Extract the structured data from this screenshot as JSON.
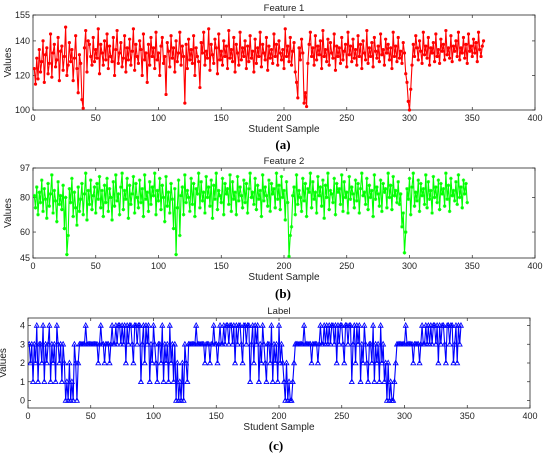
{
  "panel_labels": [
    "(a)",
    "(b)",
    "(c)"
  ],
  "colors": {
    "feature1": "#ff0000",
    "feature2": "#00ff00",
    "label": "#0000ff"
  },
  "chart_data": [
    {
      "type": "line",
      "title": "Feature 1",
      "xlabel": "Student Sample",
      "ylabel": "Values",
      "xlim": [
        0,
        400
      ],
      "ylim": [
        100,
        155
      ],
      "xticks": [
        0,
        50,
        100,
        150,
        200,
        250,
        300,
        350,
        400
      ],
      "yticks": [
        100,
        120,
        140,
        155
      ],
      "marker": "circle",
      "color": "#ff0000",
      "series": [
        {
          "x_start": 1,
          "x_step": 1,
          "values": [
            124,
            115,
            130,
            118,
            135,
            122,
            128,
            140,
            116,
            132,
            136,
            121,
            127,
            144,
            119,
            133,
            138,
            125,
            129,
            142,
            117,
            134,
            137,
            123,
            131,
            148,
            120,
            126,
            139,
            128,
            135,
            117,
            130,
            143,
            124,
            110,
            132,
            127,
            106,
            101,
            136,
            146,
            122,
            140,
            138,
            131,
            126,
            142,
            128,
            135,
            130,
            147,
            121,
            138,
            133,
            126,
            140,
            129,
            144,
            124,
            137,
            131,
            128,
            142,
            120,
            135,
            146,
            127,
            133,
            139,
            125,
            130,
            143,
            122,
            136,
            129,
            141,
            126,
            134,
            147,
            123,
            138,
            131,
            127,
            140,
            135,
            120,
            144,
            129,
            133,
            116,
            138,
            126,
            142,
            131,
            136,
            124,
            145,
            129,
            133,
            120,
            137,
            142,
            127,
            131,
            109,
            139,
            134,
            125,
            143,
            130,
            136,
            122,
            140,
            128,
            133,
            145,
            126,
            137,
            131,
            104,
            138,
            124,
            141,
            129,
            135,
            127,
            143,
            120,
            136,
            131,
            128,
            113,
            139,
            133,
            145,
            126,
            134,
            130,
            147,
            123,
            138,
            132,
            127,
            141,
            136,
            121,
            144,
            129,
            134,
            126,
            140,
            131,
            137,
            124,
            146,
            130,
            135,
            128,
            142,
            122,
            138,
            133,
            126,
            145,
            129,
            136,
            131,
            140,
            124,
            137,
            128,
            143,
            130,
            134,
            122,
            141,
            127,
            136,
            131,
            145,
            125,
            138,
            133,
            129,
            142,
            123,
            137,
            130,
            135,
            127,
            144,
            131,
            138,
            126,
            140,
            133,
            129,
            135,
            124,
            147,
            131,
            137,
            128,
            142,
            126,
            134,
            139,
            122,
            116,
            107,
            136,
            129,
            141,
            133,
            104,
            110,
            102,
            127,
            138,
            145,
            131,
            136,
            126,
            143,
            129,
            137,
            132,
            140,
            124,
            146,
            131,
            135,
            128,
            141,
            126,
            139,
            133,
            130,
            144,
            123,
            137,
            131,
            136,
            127,
            142,
            129,
            134,
            138,
            125,
            145,
            132,
            137,
            128,
            141,
            130,
            135,
            126,
            143,
            131,
            138,
            124,
            140,
            133,
            129,
            146,
            127,
            136,
            131,
            139,
            125,
            142,
            134,
            130,
            137,
            128,
            144,
            132,
            135,
            126,
            141,
            133,
            138,
            129,
            136,
            124,
            145,
            131,
            137,
            128,
            142,
            130,
            134,
            127,
            139,
            133,
            121,
            116,
            105,
            100,
            112,
            126,
            138,
            131,
            143,
            136,
            129,
            140,
            134,
            127,
            145,
            132,
            137,
            130,
            142,
            126,
            136,
            133,
            139,
            128,
            144,
            131,
            135,
            127,
            141,
            134,
            138,
            129,
            146,
            132,
            136,
            130,
            143,
            128,
            137,
            134,
            140,
            131,
            145,
            129,
            136,
            133,
            142,
            130,
            138,
            127,
            144,
            134,
            137,
            131,
            141,
            133,
            139,
            128,
            145,
            135,
            131,
            137,
            140
          ]
        }
      ]
    },
    {
      "type": "line",
      "title": "Feature 2",
      "xlabel": "Student Sample",
      "ylabel": "Values",
      "xlim": [
        0,
        400
      ],
      "ylim": [
        45,
        97
      ],
      "xticks": [
        0,
        50,
        100,
        150,
        200,
        250,
        300,
        350,
        400
      ],
      "yticks": [
        45,
        60,
        80,
        97
      ],
      "marker": "star",
      "color": "#00ff00",
      "series": [
        {
          "x_start": 1,
          "x_step": 1,
          "values": [
            81,
            74,
            86,
            70,
            83,
            77,
            90,
            72,
            85,
            79,
            68,
            88,
            75,
            82,
            93,
            71,
            84,
            78,
            66,
            89,
            76,
            81,
            73,
            87,
            62,
            80,
            47,
            58,
            85,
            77,
            91,
            69,
            83,
            74,
            64,
            86,
            72,
            79,
            88,
            70,
            82,
            94,
            67,
            84,
            76,
            90,
            73,
            81,
            86,
            71,
            88,
            79,
            92,
            74,
            84,
            69,
            87,
            77,
            91,
            72,
            85,
            80,
            67,
            89,
            75,
            93,
            78,
            82,
            70,
            86,
            94,
            73,
            84,
            79,
            91,
            68,
            87,
            76,
            82,
            92,
            71,
            88,
            80,
            74,
            90,
            77,
            85,
            69,
            93,
            79,
            83,
            72,
            89,
            76,
            86,
            81,
            94,
            70,
            84,
            78,
            91,
            73,
            87,
            80,
            66,
            92,
            75,
            83,
            71,
            88,
            79,
            62,
            85,
            47,
            74,
            90,
            58,
            81,
            86,
            70,
            93,
            77,
            84,
            80,
            72,
            91,
            76,
            88,
            69,
            85,
            82,
            94,
            74,
            89,
            78,
            83,
            71,
            92,
            80,
            86,
            75,
            90,
            68,
            87,
            79,
            94,
            73,
            84,
            81,
            77,
            91,
            70,
            88,
            82,
            85,
            76,
            93,
            72,
            89,
            79,
            83,
            70,
            92,
            78,
            86,
            81,
            74,
            90,
            77,
            88,
            71,
            85,
            94,
            80,
            83,
            76,
            91,
            73,
            87,
            79,
            84,
            69,
            93,
            78,
            86,
            81,
            75,
            90,
            72,
            88,
            82,
            85,
            74,
            94,
            79,
            87,
            73,
            92,
            80,
            84,
            67,
            89,
            77,
            46,
            58,
            63,
            81,
            86,
            70,
            93,
            76,
            84,
            80,
            72,
            91,
            78,
            88,
            69,
            85,
            83,
            94,
            74,
            89,
            79,
            83,
            71,
            92,
            81,
            86,
            75,
            90,
            68,
            87,
            80,
            94,
            73,
            84,
            82,
            77,
            91,
            70,
            88,
            83,
            85,
            76,
            93,
            72,
            89,
            80,
            83,
            71,
            92,
            79,
            86,
            82,
            74,
            90,
            78,
            88,
            71,
            85,
            94,
            81,
            83,
            76,
            91,
            73,
            87,
            80,
            84,
            69,
            93,
            79,
            86,
            82,
            75,
            90,
            72,
            88,
            83,
            85,
            74,
            94,
            80,
            87,
            73,
            92,
            81,
            84,
            77,
            89,
            76,
            82,
            63,
            71,
            48,
            60,
            85,
            79,
            91,
            70,
            86,
            94,
            75,
            83,
            78,
            90,
            72,
            88,
            81,
            85,
            76,
            93,
            74,
            89,
            79,
            84,
            71,
            92,
            80,
            86,
            77,
            90,
            73,
            88,
            82,
            85,
            75,
            94,
            79,
            87,
            72,
            91,
            81,
            84,
            78,
            89,
            76,
            93,
            80,
            86,
            74,
            90,
            82,
            88,
            77
          ]
        }
      ]
    },
    {
      "type": "line",
      "title": "Label",
      "xlabel": "Student Sample",
      "ylabel": "Values",
      "xlim": [
        0,
        400
      ],
      "ylim": [
        -0.4,
        4.4
      ],
      "xticks": [
        0,
        50,
        100,
        150,
        200,
        250,
        300,
        350,
        400
      ],
      "yticks": [
        0,
        1,
        2,
        3,
        4
      ],
      "marker": "triangle",
      "color": "#0000ff",
      "series": [
        {
          "x_start": 1,
          "x_step": 1,
          "values": [
            3,
            2,
            3,
            1,
            3,
            2,
            4,
            1,
            3,
            3,
            2,
            4,
            1,
            3,
            2,
            3,
            4,
            1,
            3,
            2,
            3,
            1,
            4,
            3,
            2,
            3,
            1,
            3,
            2,
            0,
            1,
            0,
            2,
            0,
            1,
            0,
            3,
            2,
            0,
            2,
            3,
            3,
            3,
            3,
            3,
            4,
            3,
            3,
            3,
            3,
            3,
            3,
            3,
            3,
            3,
            2,
            3,
            4,
            3,
            3,
            2,
            3,
            3,
            3,
            2,
            3,
            4,
            3,
            3,
            4,
            3,
            4,
            4,
            3,
            4,
            3,
            4,
            2,
            4,
            3,
            4,
            4,
            3,
            2,
            4,
            4,
            3,
            4,
            4,
            1,
            3,
            4,
            2,
            4,
            3,
            4,
            1,
            3,
            2,
            4,
            3,
            2,
            1,
            3,
            3,
            2,
            4,
            1,
            3,
            2,
            3,
            1,
            4,
            2,
            3,
            1,
            3,
            0,
            2,
            0,
            1,
            0,
            2,
            0,
            3,
            2,
            1,
            3,
            3,
            3,
            3,
            3,
            3,
            4,
            3,
            3,
            3,
            3,
            3,
            3,
            2,
            3,
            3,
            3,
            2,
            3,
            3,
            4,
            3,
            3,
            2,
            3,
            4,
            3,
            3,
            4,
            3,
            4,
            4,
            3,
            4,
            4,
            3,
            4,
            2,
            4,
            3,
            4,
            4,
            3,
            2,
            4,
            4,
            3,
            4,
            4,
            1,
            3,
            4,
            2,
            4,
            3,
            4,
            1,
            3,
            2,
            4,
            3,
            2,
            1,
            3,
            3,
            2,
            4,
            1,
            3,
            2,
            3,
            1,
            4,
            2,
            3,
            2,
            1,
            0,
            2,
            0,
            1,
            0,
            0,
            1,
            2,
            3,
            3,
            3,
            3,
            3,
            3,
            3,
            4,
            3,
            3,
            3,
            3,
            3,
            2,
            3,
            3,
            3,
            3,
            2,
            3,
            4,
            3,
            3,
            4,
            3,
            4,
            3,
            4,
            3,
            4,
            4,
            3,
            4,
            2,
            4,
            3,
            4,
            4,
            3,
            2,
            4,
            4,
            3,
            4,
            4,
            1,
            3,
            4,
            2,
            4,
            3,
            4,
            1,
            3,
            2,
            4,
            3,
            2,
            1,
            3,
            3,
            2,
            4,
            1,
            3,
            2,
            3,
            1,
            4,
            2,
            3,
            1,
            2,
            0,
            2,
            0,
            1,
            0,
            0,
            1,
            2,
            3,
            3,
            3,
            3,
            3,
            3,
            3,
            4,
            3,
            3,
            3,
            3,
            3,
            2,
            3,
            3,
            3,
            3,
            2,
            3,
            4,
            3,
            3,
            4,
            3,
            4,
            3,
            4,
            3,
            4,
            4,
            3,
            4,
            2,
            4,
            3,
            4,
            4,
            3,
            2,
            4,
            4,
            3,
            4,
            4,
            2,
            3,
            4,
            2,
            4,
            3,
            4
          ]
        }
      ]
    }
  ]
}
